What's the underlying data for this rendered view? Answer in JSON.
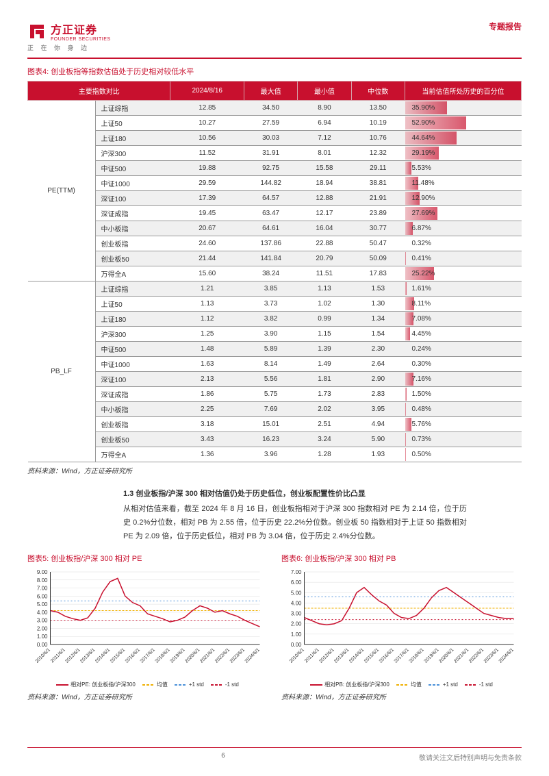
{
  "header": {
    "company_cn": "方正证券",
    "company_en": "FOUNDER SECURITIES",
    "slogan": "正 在 你 身 边",
    "report_type": "专题报告"
  },
  "table4": {
    "title": "图表4: 创业板指等指数估值处于历史相对较低水平",
    "headers": [
      "主要指数对比",
      "2024/8/16",
      "最大值",
      "最小值",
      "中位数",
      "当前估值所处历史的百分位"
    ],
    "categories": [
      {
        "label": "PE(TTM)",
        "rows": [
          {
            "name": "上证综指",
            "v": "12.85",
            "max": "34.50",
            "min": "8.90",
            "med": "13.50",
            "pct": 35.9
          },
          {
            "name": "上证50",
            "v": "10.27",
            "max": "27.59",
            "min": "6.94",
            "med": "10.19",
            "pct": 52.9
          },
          {
            "name": "上证180",
            "v": "10.56",
            "max": "30.03",
            "min": "7.12",
            "med": "10.76",
            "pct": 44.64
          },
          {
            "name": "沪深300",
            "v": "11.52",
            "max": "31.91",
            "min": "8.01",
            "med": "12.32",
            "pct": 29.19
          },
          {
            "name": "中证500",
            "v": "19.88",
            "max": "92.75",
            "min": "15.58",
            "med": "29.11",
            "pct": 5.53
          },
          {
            "name": "中证1000",
            "v": "29.59",
            "max": "144.82",
            "min": "18.94",
            "med": "38.81",
            "pct": 11.48
          },
          {
            "name": "深证100",
            "v": "17.39",
            "max": "64.57",
            "min": "12.88",
            "med": "21.91",
            "pct": 12.9
          },
          {
            "name": "深证成指",
            "v": "19.45",
            "max": "63.47",
            "min": "12.17",
            "med": "23.89",
            "pct": 27.69
          },
          {
            "name": "中小板指",
            "v": "20.67",
            "max": "64.61",
            "min": "16.04",
            "med": "30.77",
            "pct": 6.87
          },
          {
            "name": "创业板指",
            "v": "24.60",
            "max": "137.86",
            "min": "22.88",
            "med": "50.47",
            "pct": 0.32
          },
          {
            "name": "创业板50",
            "v": "21.44",
            "max": "141.84",
            "min": "20.79",
            "med": "50.09",
            "pct": 0.41
          },
          {
            "name": "万得全A",
            "v": "15.60",
            "max": "38.24",
            "min": "11.51",
            "med": "17.83",
            "pct": 25.22
          }
        ]
      },
      {
        "label": "PB_LF",
        "rows": [
          {
            "name": "上证综指",
            "v": "1.21",
            "max": "3.85",
            "min": "1.13",
            "med": "1.53",
            "pct": 1.61
          },
          {
            "name": "上证50",
            "v": "1.13",
            "max": "3.73",
            "min": "1.02",
            "med": "1.30",
            "pct": 8.11
          },
          {
            "name": "上证180",
            "v": "1.12",
            "max": "3.82",
            "min": "0.99",
            "med": "1.34",
            "pct": 7.08
          },
          {
            "name": "沪深300",
            "v": "1.25",
            "max": "3.90",
            "min": "1.15",
            "med": "1.54",
            "pct": 4.45
          },
          {
            "name": "中证500",
            "v": "1.48",
            "max": "5.89",
            "min": "1.39",
            "med": "2.30",
            "pct": 0.24
          },
          {
            "name": "中证1000",
            "v": "1.63",
            "max": "8.14",
            "min": "1.49",
            "med": "2.64",
            "pct": 0.3
          },
          {
            "name": "深证100",
            "v": "2.13",
            "max": "5.56",
            "min": "1.81",
            "med": "2.90",
            "pct": 7.16
          },
          {
            "name": "深证成指",
            "v": "1.86",
            "max": "5.75",
            "min": "1.73",
            "med": "2.83",
            "pct": 1.5
          },
          {
            "name": "中小板指",
            "v": "2.25",
            "max": "7.69",
            "min": "2.02",
            "med": "3.95",
            "pct": 0.48
          },
          {
            "name": "创业板指",
            "v": "3.18",
            "max": "15.01",
            "min": "2.51",
            "med": "4.94",
            "pct": 5.76
          },
          {
            "name": "创业板50",
            "v": "3.43",
            "max": "16.23",
            "min": "3.24",
            "med": "5.90",
            "pct": 0.73
          },
          {
            "name": "万得全A",
            "v": "1.36",
            "max": "3.96",
            "min": "1.28",
            "med": "1.93",
            "pct": 0.5
          }
        ]
      }
    ],
    "source": "资料来源：Wind，方正证券研究所"
  },
  "section": {
    "title": "1.3 创业板指/沪深 300 相对估值仍处于历史低位，创业板配置性价比凸显",
    "body": "从相对估值来看，截至 2024 年 8 月 16 日，创业板指相对于沪深 300 指数相对 PE 为 2.14 倍，位于历史 0.2%分位数，相对 PB 为 2.55 倍，位于历史 22.2%分位数。创业板 50 指数相对于上证 50 指数相对 PE 为 2.09 倍，位于历史低位，相对 PB 为 3.04 倍，位于历史 2.4%分位数。"
  },
  "chart5": {
    "title": "图表5: 创业板指/沪深 300 相对 PE",
    "ylim": [
      0,
      9
    ],
    "ytick": 1,
    "xlabels": [
      "2010/6/1",
      "2011/6/1",
      "2012/6/1",
      "2013/6/1",
      "2014/6/1",
      "2015/6/1",
      "2016/6/1",
      "2017/6/1",
      "2018/6/1",
      "2019/6/1",
      "2020/6/1",
      "2021/6/1",
      "2022/6/1",
      "2023/6/1",
      "2024/6/1"
    ],
    "series": [
      4.2,
      4.0,
      3.5,
      3.2,
      3.0,
      3.3,
      4.5,
      6.5,
      7.8,
      8.2,
      6.0,
      5.2,
      4.8,
      3.8,
      3.5,
      3.2,
      2.8,
      3.0,
      3.4,
      4.2,
      4.8,
      4.5,
      4.0,
      4.2,
      3.8,
      3.5,
      3.0,
      2.6,
      2.2
    ],
    "mean": 4.2,
    "std": 1.2,
    "legend_series": "相对PE: 创业板指/沪深300",
    "source": "资料来源：Wind，方正证券研究所"
  },
  "chart6": {
    "title": "图表6: 创业板指/沪深 300 相对 PB",
    "ylim": [
      0,
      7
    ],
    "ytick": 1,
    "xlabels": [
      "2010/6/1",
      "2011/6/1",
      "2012/6/1",
      "2013/6/1",
      "2014/6/1",
      "2015/6/1",
      "2016/6/1",
      "2017/6/1",
      "2018/6/1",
      "2019/6/1",
      "2020/6/1",
      "2021/6/1",
      "2022/6/1",
      "2023/6/1",
      "2024/6/1"
    ],
    "series": [
      2.6,
      2.3,
      2.0,
      1.9,
      2.0,
      2.3,
      3.5,
      5.0,
      5.5,
      4.8,
      4.2,
      3.8,
      3.0,
      2.6,
      2.5,
      2.8,
      3.5,
      4.5,
      5.2,
      5.5,
      5.0,
      4.5,
      4.0,
      3.5,
      3.0,
      2.8,
      2.6,
      2.5,
      2.5
    ],
    "mean": 3.5,
    "std": 1.1,
    "legend_series": "相对PB: 创业板指/沪深300",
    "source": "资料来源：Wind，方正证券研究所"
  },
  "legend_common": {
    "mean": "均值",
    "plus": "+1 std",
    "minus": "-1 std"
  },
  "footer": {
    "page": "6",
    "disclaimer": "敬请关注文后特别声明与免责条款"
  },
  "colors": {
    "brand": "#c8102e",
    "line": "#c8102e",
    "mean": "#f0b000",
    "plus": "#4a90d9",
    "minus": "#c8102e"
  }
}
